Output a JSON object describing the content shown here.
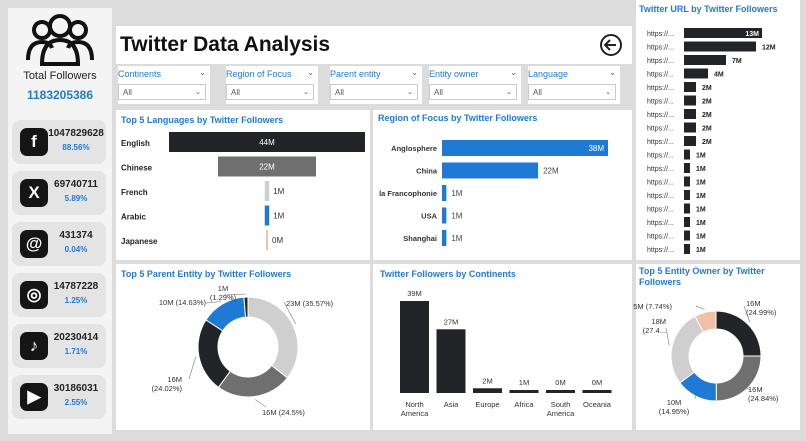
{
  "title": "Twitter Data Analysis",
  "sidebar": {
    "total_label": "Total Followers",
    "total_value": "1183205386",
    "platforms": [
      {
        "icon": "facebook-icon",
        "glyph": "f",
        "value": "1047829628",
        "pct": "88.56%"
      },
      {
        "icon": "x-twitter-icon",
        "glyph": "X",
        "value": "69740711",
        "pct": "5.89%"
      },
      {
        "icon": "threads-icon",
        "glyph": "@",
        "value": "431374",
        "pct": "0.04%"
      },
      {
        "icon": "instagram-icon",
        "glyph": "◎",
        "value": "14787228",
        "pct": "1.25%"
      },
      {
        "icon": "tiktok-icon",
        "glyph": "♪",
        "value": "20230414",
        "pct": "1.71%"
      },
      {
        "icon": "youtube-icon",
        "glyph": "▶",
        "value": "30186031",
        "pct": "2.55%"
      }
    ]
  },
  "filters": [
    {
      "label": "Continents",
      "value": "All"
    },
    {
      "label": "Region of Focus",
      "value": "All"
    },
    {
      "label": "Parent entity",
      "value": "All"
    },
    {
      "label": "Entity owner",
      "value": "All"
    },
    {
      "label": "Language",
      "value": "All"
    }
  ],
  "colors": {
    "accent": "#1f7ad6",
    "dark": "#222428",
    "gray": "#6f6f6f",
    "light": "#cfcfcf",
    "peach": "#f2c0a8"
  },
  "chart_data": [
    {
      "id": "languages",
      "type": "bar",
      "title": "Top 5 Languages by Twitter Followers",
      "categories": [
        "English",
        "Chinese",
        "French",
        "Arabic",
        "Japanese"
      ],
      "values": [
        44,
        22,
        1,
        1,
        0
      ],
      "labels": [
        "44M",
        "22M",
        "1M",
        "1M",
        "0M"
      ]
    },
    {
      "id": "region",
      "type": "bar",
      "title": "Region of Focus by Twitter Followers",
      "categories": [
        "Anglosphere",
        "China",
        "la Francophonie",
        "USA",
        "Shanghai"
      ],
      "values": [
        38,
        22,
        1,
        1,
        1
      ],
      "labels": [
        "38M",
        "22M",
        "1M",
        "1M",
        "1M"
      ]
    },
    {
      "id": "url",
      "type": "bar",
      "title": "Twitter URL by Twitter Followers",
      "categories": [
        "https://...",
        "https://...",
        "https://...",
        "https://...",
        "https://...",
        "https://...",
        "https://...",
        "https://...",
        "https://...",
        "https://...",
        "https://...",
        "https://...",
        "https://...",
        "https://...",
        "https://...",
        "https://...",
        "https://..."
      ],
      "values": [
        13,
        12,
        7,
        4,
        2,
        2,
        2,
        2,
        2,
        1,
        1,
        1,
        1,
        1,
        1,
        1,
        1
      ],
      "labels": [
        "13M",
        "12M",
        "7M",
        "4M",
        "2M",
        "2M",
        "2M",
        "2M",
        "2M",
        "1M",
        "1M",
        "1M",
        "1M",
        "1M",
        "1M",
        "1M",
        "1M"
      ]
    },
    {
      "id": "parent",
      "type": "pie",
      "title": "Top 5 Parent Entity by Twitter Followers",
      "values": [
        35.57,
        24.5,
        24.02,
        14.63,
        1.29
      ],
      "labels": [
        "23M (35.57%)",
        "16M (24.5%)",
        "16M (24.02%)",
        "10M (14.63%)",
        "1M (1.29%)"
      ]
    },
    {
      "id": "continents",
      "type": "bar",
      "title": "Twitter Followers by Continents",
      "categories": [
        "North America",
        "Asia",
        "Europe",
        "Africa",
        "South America",
        "Oceania"
      ],
      "values": [
        39,
        27,
        2,
        1,
        0,
        0
      ],
      "labels": [
        "39M",
        "27M",
        "2M",
        "1M",
        "0M",
        "0M"
      ]
    },
    {
      "id": "owner",
      "type": "pie",
      "title": "Top 5 Entity Owner by Twitter Followers",
      "values": [
        24.99,
        24.84,
        14.95,
        27.4,
        7.74
      ],
      "labels": [
        "16M (24.99%)",
        "16M (24.84%)",
        "10M (14.95%)",
        "18M (27.4...",
        "5M (7.74%)"
      ]
    }
  ]
}
